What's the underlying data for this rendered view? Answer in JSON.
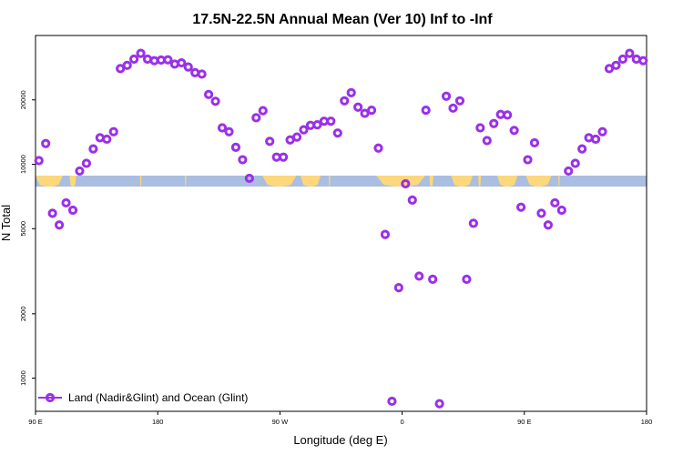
{
  "chart_data": {
    "type": "scatter",
    "title": "17.5N-22.5N Annual Mean (Ver 10)   Inf to -Inf",
    "xlabel": "Longitude (deg E)",
    "ylabel": "N Total",
    "xlim": [
      90,
      540
    ],
    "ylim": [
      700,
      40000
    ],
    "yscale": "log",
    "x_ticks": [
      {
        "value": 90,
        "label": "90 E"
      },
      {
        "value": 180,
        "label": "180"
      },
      {
        "value": 270,
        "label": "90 W"
      },
      {
        "value": 360,
        "label": "0"
      },
      {
        "value": 450,
        "label": "90 E"
      },
      {
        "value": 540,
        "label": "180"
      }
    ],
    "y_ticks": [
      {
        "value": 1000,
        "label": "1000"
      },
      {
        "value": 2000,
        "label": "2000"
      },
      {
        "value": 5000,
        "label": "5000"
      },
      {
        "value": 10000,
        "label": "10000"
      },
      {
        "value": 20000,
        "label": "20000"
      }
    ],
    "series": [
      {
        "name": "Land (Nadir&Glint) and Ocean (Glint)",
        "color": "#9b30e8",
        "marker": "circle-open",
        "points": [
          [
            92.5,
            10400
          ],
          [
            97.5,
            12500
          ],
          [
            102.5,
            5900
          ],
          [
            107.5,
            5200
          ],
          [
            112.5,
            6600
          ],
          [
            117.5,
            6100
          ],
          [
            122.5,
            9300
          ],
          [
            127.5,
            10100
          ],
          [
            132.5,
            11800
          ],
          [
            137.5,
            13300
          ],
          [
            142.5,
            13100
          ],
          [
            147.5,
            14200
          ],
          [
            152.5,
            28000
          ],
          [
            157.5,
            29000
          ],
          [
            162.5,
            31000
          ],
          [
            167.5,
            33000
          ],
          [
            172.5,
            31000
          ],
          [
            177.5,
            30500
          ],
          [
            182.5,
            30700
          ],
          [
            187.5,
            30800
          ],
          [
            192.5,
            29400
          ],
          [
            197.5,
            29800
          ],
          [
            202.5,
            28500
          ],
          [
            207.5,
            26800
          ],
          [
            212.5,
            26400
          ],
          [
            217.5,
            21200
          ],
          [
            222.5,
            19700
          ],
          [
            227.5,
            14800
          ],
          [
            232.5,
            14200
          ],
          [
            237.5,
            12000
          ],
          [
            242.5,
            10500
          ],
          [
            247.5,
            8600
          ],
          [
            252.5,
            16500
          ],
          [
            257.5,
            17800
          ],
          [
            262.5,
            12800
          ],
          [
            267.5,
            10800
          ],
          [
            272.5,
            10800
          ],
          [
            277.5,
            13000
          ],
          [
            282.5,
            13400
          ],
          [
            287.5,
            14500
          ],
          [
            292.5,
            15200
          ],
          [
            297.5,
            15300
          ],
          [
            302.5,
            15900
          ],
          [
            307.5,
            15900
          ],
          [
            312.5,
            14000
          ],
          [
            317.5,
            19800
          ],
          [
            322.5,
            21600
          ],
          [
            327.5,
            18500
          ],
          [
            332.5,
            17300
          ],
          [
            337.5,
            17900
          ],
          [
            342.5,
            11900
          ],
          [
            347.5,
            4700
          ],
          [
            352.5,
            780
          ],
          [
            357.5,
            2650
          ],
          [
            362.5,
            8100
          ],
          [
            367.5,
            6800
          ],
          [
            372.5,
            3000
          ],
          [
            377.5,
            17900
          ],
          [
            382.5,
            2900
          ],
          [
            387.5,
            760
          ],
          [
            392.5,
            20800
          ],
          [
            397.5,
            18300
          ],
          [
            402.5,
            19800
          ],
          [
            407.5,
            2900
          ],
          [
            412.5,
            5300
          ],
          [
            417.5,
            14800
          ],
          [
            422.5,
            12900
          ],
          [
            427.5,
            15500
          ],
          [
            432.5,
            17100
          ],
          [
            437.5,
            17000
          ],
          [
            442.5,
            14400
          ],
          [
            447.5,
            6300
          ],
          [
            452.5,
            10500
          ],
          [
            457.5,
            12600
          ],
          [
            462.5,
            5900
          ],
          [
            467.5,
            5200
          ],
          [
            472.5,
            6600
          ],
          [
            477.5,
            6100
          ],
          [
            482.5,
            9300
          ],
          [
            487.5,
            10100
          ],
          [
            492.5,
            11800
          ],
          [
            497.5,
            13300
          ],
          [
            502.5,
            13100
          ],
          [
            507.5,
            14200
          ],
          [
            512.5,
            28000
          ],
          [
            517.5,
            29000
          ],
          [
            522.5,
            31000
          ],
          [
            527.5,
            33000
          ],
          [
            532.5,
            31000
          ],
          [
            537.5,
            30500
          ]
        ]
      }
    ],
    "legend": {
      "position": "bottom-left",
      "label": "Land (Nadir&Glint) and Ocean (Glint)"
    },
    "map_strip": {
      "ocean_color": "#a9bee0",
      "land_color": "#fdd77c",
      "land_ranges": [
        [
          90,
          110
        ],
        [
          115,
          120
        ],
        [
          167,
          168
        ],
        [
          200,
          201
        ],
        [
          257,
          282
        ],
        [
          285,
          300
        ],
        [
          306,
          307
        ],
        [
          341,
          377
        ],
        [
          380,
          383
        ],
        [
          396,
          412
        ],
        [
          416,
          418
        ],
        [
          430,
          445
        ],
        [
          451,
          470
        ],
        [
          475,
          476
        ]
      ]
    }
  }
}
